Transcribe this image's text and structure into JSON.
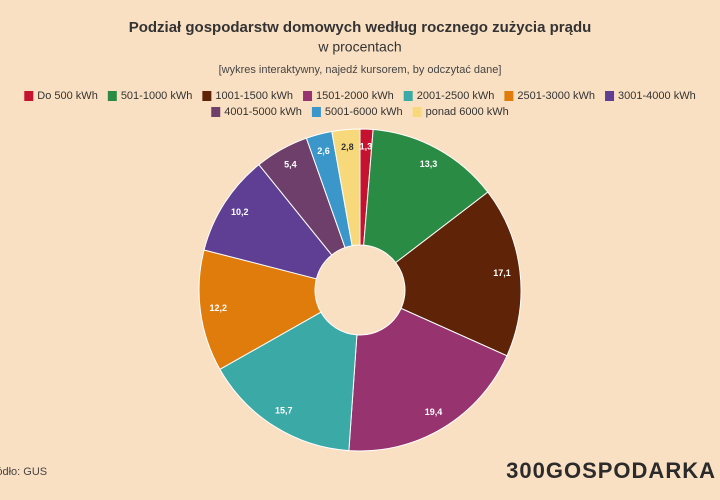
{
  "chart_data": {
    "type": "pie",
    "title": "Podział gospodarstw domowych według rocznego zużycia prądu",
    "subtitle": "w procentach",
    "note": "[wykres interaktywny, najedź kursorem, by odczytać dane]",
    "categories": [
      "Do 500 kWh",
      "501-1000 kWh",
      "1001-1500 kWh",
      "1501-2000 kWh",
      "2001-2500 kWh",
      "2501-3000 kWh",
      "3001-4000 kWh",
      "4001-5000 kWh",
      "5001-6000 kWh",
      "ponad 6000 kWh"
    ],
    "values": [
      1.3,
      13.3,
      17.1,
      19.4,
      15.7,
      12.2,
      10.2,
      5.4,
      2.6,
      2.8
    ],
    "value_labels": [
      "1,3",
      "13,3",
      "17,1",
      "19,4",
      "15,7",
      "12,2",
      "10,2",
      "5,4",
      "2,6",
      "2,8"
    ],
    "colors": [
      "#c4122f",
      "#2a8b45",
      "#5f2307",
      "#973470",
      "#3ba9a6",
      "#e07c0c",
      "#5e3f93",
      "#6f3f6b",
      "#3b97c9",
      "#f7d97c"
    ],
    "source": "Źródło: GUS",
    "logo": "300GOSPODARKA"
  }
}
